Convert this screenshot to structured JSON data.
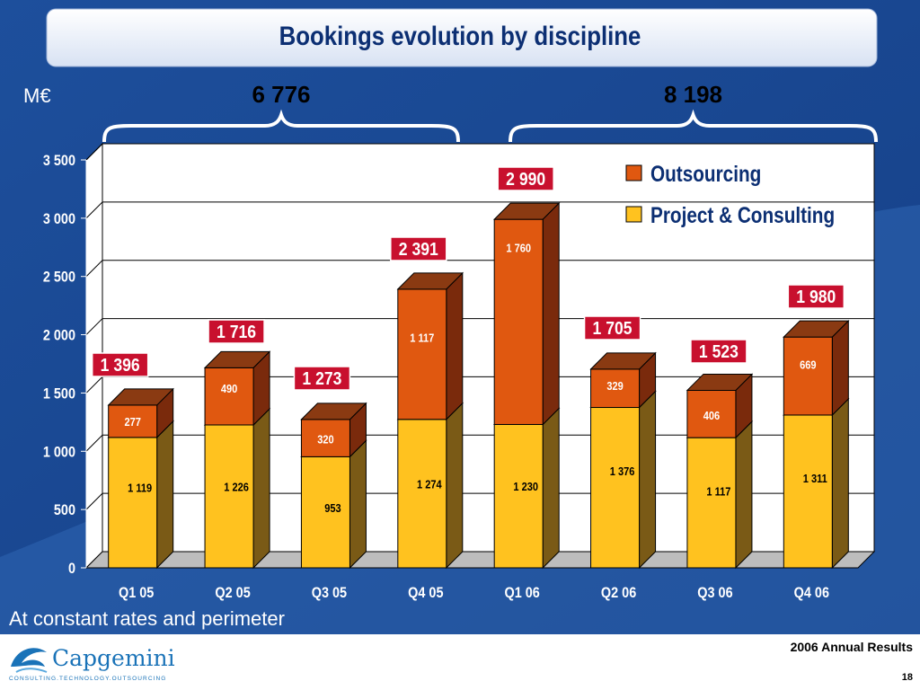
{
  "slide": {
    "title": "Bookings evolution by discipline",
    "footnote": "At constant rates and perimeter",
    "report_label": "2006 Annual Results",
    "page_number": "18",
    "logo": {
      "wordmark": "Capgemini",
      "tagline": "CONSULTING.TECHNOLOGY.OUTSOURCING"
    }
  },
  "colors": {
    "background_blue": "#1b4a94",
    "title_bar": "#e6ecf7",
    "title_text": "#0c2f73",
    "outsourcing": "#e05810",
    "project_consulting": "#ffc21f",
    "total_label_bg": "#c8102e",
    "brand_blue": "#1a73b8"
  },
  "chart_data": {
    "type": "bar",
    "stacked": true,
    "unit_label": "M€",
    "categories": [
      "Q1 05",
      "Q2 05",
      "Q3 05",
      "Q4 05",
      "Q1 06",
      "Q2 06",
      "Q3 06",
      "Q4 06"
    ],
    "series": [
      {
        "name": "Project & Consulting",
        "values": [
          1119,
          1226,
          953,
          1274,
          1230,
          1376,
          1117,
          1311
        ]
      },
      {
        "name": "Outsourcing",
        "values": [
          277,
          490,
          320,
          1117,
          1760,
          329,
          406,
          669
        ]
      }
    ],
    "totals": [
      1396,
      1716,
      1273,
      2391,
      2990,
      1705,
      1523,
      1980
    ],
    "display_values": {
      "project_consulting": [
        "1 119",
        "1 226",
        "953",
        "1 274",
        "1 230",
        "1 376",
        "1 117",
        "1 311"
      ],
      "outsourcing": [
        "277",
        "490",
        "320",
        "1 117",
        "1 760",
        "329",
        "406",
        "669"
      ],
      "totals": [
        "1 396",
        "1 716",
        "1 273",
        "2 391",
        "2 990",
        "1 705",
        "1 523",
        "1 980"
      ]
    },
    "year_totals": [
      {
        "label": "6 776",
        "categories": [
          "Q1 05",
          "Q2 05",
          "Q3 05",
          "Q4 05"
        ]
      },
      {
        "label": "8 198",
        "categories": [
          "Q1 06",
          "Q2 06",
          "Q3 06",
          "Q4 06"
        ]
      }
    ],
    "ylim": [
      0,
      3500
    ],
    "y_ticks": [
      0,
      500,
      1000,
      1500,
      2000,
      2500,
      3000,
      3500
    ],
    "y_tick_labels": [
      "0",
      "500",
      "1 000",
      "1 500",
      "2 000",
      "2 500",
      "3 000",
      "3 500"
    ],
    "grid": true,
    "legend_position": "top-right",
    "legend": [
      "Outsourcing",
      "Project & Consulting"
    ]
  }
}
